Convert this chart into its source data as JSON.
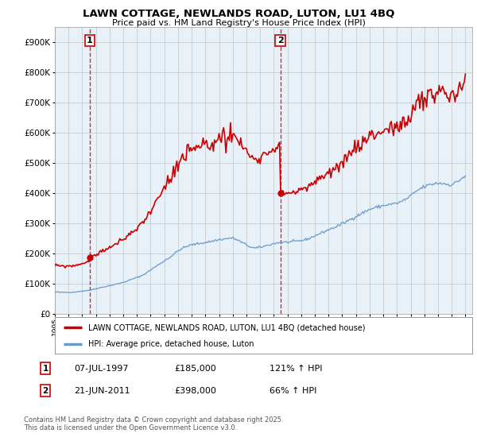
{
  "title": "LAWN COTTAGE, NEWLANDS ROAD, LUTON, LU1 4BQ",
  "subtitle": "Price paid vs. HM Land Registry's House Price Index (HPI)",
  "house_color": "#cc0000",
  "hpi_color": "#6699cc",
  "plot_bg_color": "#e8f0f8",
  "fig_bg_color": "#ffffff",
  "ylim": [
    0,
    950000
  ],
  "yticks": [
    0,
    100000,
    200000,
    300000,
    400000,
    500000,
    600000,
    700000,
    800000,
    900000
  ],
  "legend_house": "LAWN COTTAGE, NEWLANDS ROAD, LUTON, LU1 4BQ (detached house)",
  "legend_hpi": "HPI: Average price, detached house, Luton",
  "sale1_date": "07-JUL-1997",
  "sale1_price": 185000,
  "sale1_hpi_text": "121% ↑ HPI",
  "sale2_date": "21-JUN-2011",
  "sale2_price": 398000,
  "sale2_hpi_text": "66% ↑ HPI",
  "footnote_line1": "Contains HM Land Registry data © Crown copyright and database right 2025.",
  "footnote_line2": "This data is licensed under the Open Government Licence v3.0.",
  "sale1_x": 1997.54,
  "sale1_y": 185000,
  "sale2_x": 2011.47,
  "sale2_y": 398000,
  "xmin": 1995.0,
  "xmax": 2025.5
}
